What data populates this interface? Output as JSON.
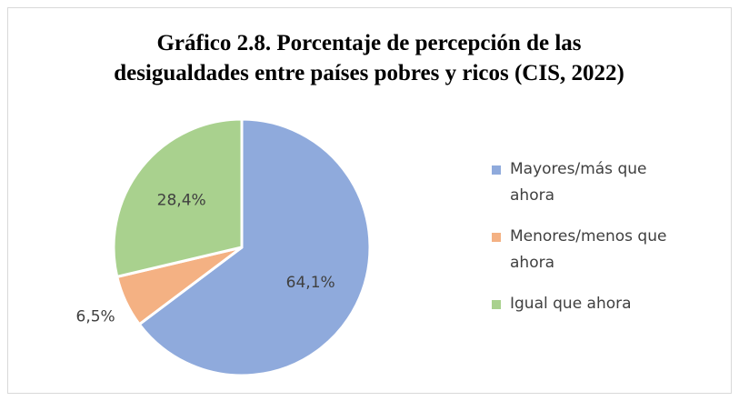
{
  "chart_data": {
    "type": "pie",
    "title": [
      "Gráfico 2.8. Porcentaje de percepción de las",
      "desigualdades entre países pobres y ricos (CIS, 2022)"
    ],
    "categories": [
      "Mayores/más que ahora",
      "Menores/menos que ahora",
      "Igual que ahora"
    ],
    "values": [
      64.1,
      6.5,
      28.4
    ],
    "value_labels": [
      "64,1%",
      "6,5%",
      "28,4%"
    ],
    "colors": [
      "#8faadc",
      "#f4b183",
      "#a9d18e"
    ],
    "legend": "right"
  }
}
